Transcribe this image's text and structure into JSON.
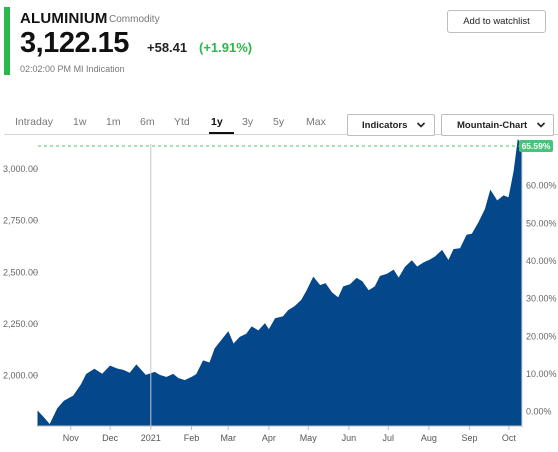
{
  "quote": {
    "name": "ALUMINIUM",
    "type": "Commodity",
    "price": "3,122.15",
    "change": "+58.41",
    "change_pct": "(+1.91%)",
    "timestamp": "02:02:00 PM",
    "indication": "MI Indication"
  },
  "actions": {
    "watchlist_label": "Add to watchlist"
  },
  "ranges": {
    "items": [
      "Intraday",
      "1w",
      "1m",
      "6m",
      "Ytd",
      "1y",
      "3y",
      "5y",
      "Max"
    ],
    "selected": "1y"
  },
  "dropdowns": {
    "indicators": "Indicators",
    "chart_type": "Mountain-Chart"
  },
  "colors": {
    "area": "#04478a",
    "positive": "#2bb84b",
    "reference": "#49c27a"
  },
  "chart_data": {
    "type": "area",
    "title": "",
    "xlabel": "",
    "ylabel": "",
    "y_axis_left": {
      "ticks": [
        "3,000.00",
        "2,750.00",
        "2,500.00",
        "2,250.00",
        "2,000.00"
      ],
      "values": [
        3000,
        2750,
        2500,
        2250,
        2000
      ],
      "range": [
        1755,
        3122
      ]
    },
    "y_axis_right": {
      "ticks": [
        "60.00%",
        "50.00%",
        "40.00%",
        "30.00%",
        "20.00%",
        "10.00%",
        "0.00%"
      ],
      "values": [
        60,
        50,
        40,
        30,
        20,
        10,
        0
      ]
    },
    "x_ticks": [
      {
        "label": "Nov",
        "date": "2020-11-01"
      },
      {
        "label": "Dec",
        "date": "2020-12-01"
      },
      {
        "label": "2021",
        "date": "2021-01-01"
      },
      {
        "label": "Feb",
        "date": "2021-02-01"
      },
      {
        "label": "Mar",
        "date": "2021-03-01"
      },
      {
        "label": "Apr",
        "date": "2021-04-01"
      },
      {
        "label": "May",
        "date": "2021-05-01"
      },
      {
        "label": "Jun",
        "date": "2021-06-01"
      },
      {
        "label": "Jul",
        "date": "2021-07-01"
      },
      {
        "label": "Aug",
        "date": "2021-08-01"
      },
      {
        "label": "Sep",
        "date": "2021-09-01"
      },
      {
        "label": "Oct",
        "date": "2021-10-01"
      }
    ],
    "reference_line_label": "65.59%",
    "vertical_marker": "2021-01-01",
    "series": [
      {
        "x": [
          "2020-10-07",
          "2020-10-12",
          "2020-10-16",
          "2020-10-22",
          "2020-10-27",
          "2020-11-03",
          "2020-11-09",
          "2020-11-13",
          "2020-11-19",
          "2020-11-25",
          "2020-12-01",
          "2020-12-07",
          "2020-12-11",
          "2020-12-16",
          "2020-12-21",
          "2020-12-28",
          "2021-01-04",
          "2021-01-08",
          "2021-01-13",
          "2021-01-18",
          "2021-01-22",
          "2021-01-27",
          "2021-02-01",
          "2021-02-05",
          "2021-02-10",
          "2021-02-15",
          "2021-02-19",
          "2021-02-24",
          "2021-03-01",
          "2021-03-05",
          "2021-03-10",
          "2021-03-15",
          "2021-03-19",
          "2021-03-24",
          "2021-03-29",
          "2021-04-01",
          "2021-04-06",
          "2021-04-12",
          "2021-04-16",
          "2021-04-21",
          "2021-04-26",
          "2021-04-30",
          "2021-05-05",
          "2021-05-10",
          "2021-05-14",
          "2021-05-19",
          "2021-05-24",
          "2021-05-28",
          "2021-06-02",
          "2021-06-07",
          "2021-06-11",
          "2021-06-16",
          "2021-06-21",
          "2021-06-25",
          "2021-06-30",
          "2021-07-05",
          "2021-07-09",
          "2021-07-14",
          "2021-07-19",
          "2021-07-23",
          "2021-07-28",
          "2021-08-02",
          "2021-08-06",
          "2021-08-11",
          "2021-08-16",
          "2021-08-20",
          "2021-08-25",
          "2021-08-30",
          "2021-09-03",
          "2021-09-08",
          "2021-09-13",
          "2021-09-17",
          "2021-09-22",
          "2021-09-27",
          "2021-10-01",
          "2021-10-05",
          "2021-10-08",
          "2021-10-11"
        ],
        "values": [
          1825,
          1790,
          1760,
          1840,
          1875,
          1900,
          1955,
          2005,
          2030,
          2005,
          2045,
          2030,
          2025,
          2010,
          2050,
          2000,
          2015,
          2000,
          1990,
          2005,
          1985,
          1975,
          1990,
          2005,
          2070,
          2060,
          2130,
          2170,
          2210,
          2150,
          2185,
          2200,
          2235,
          2215,
          2250,
          2220,
          2275,
          2285,
          2315,
          2335,
          2365,
          2410,
          2475,
          2435,
          2445,
          2400,
          2375,
          2430,
          2440,
          2470,
          2455,
          2410,
          2430,
          2480,
          2490,
          2510,
          2470,
          2525,
          2555,
          2525,
          2545,
          2560,
          2575,
          2605,
          2555,
          2610,
          2615,
          2680,
          2685,
          2740,
          2805,
          2895,
          2845,
          2870,
          2860,
          2990,
          3140,
          3122
        ]
      }
    ]
  }
}
